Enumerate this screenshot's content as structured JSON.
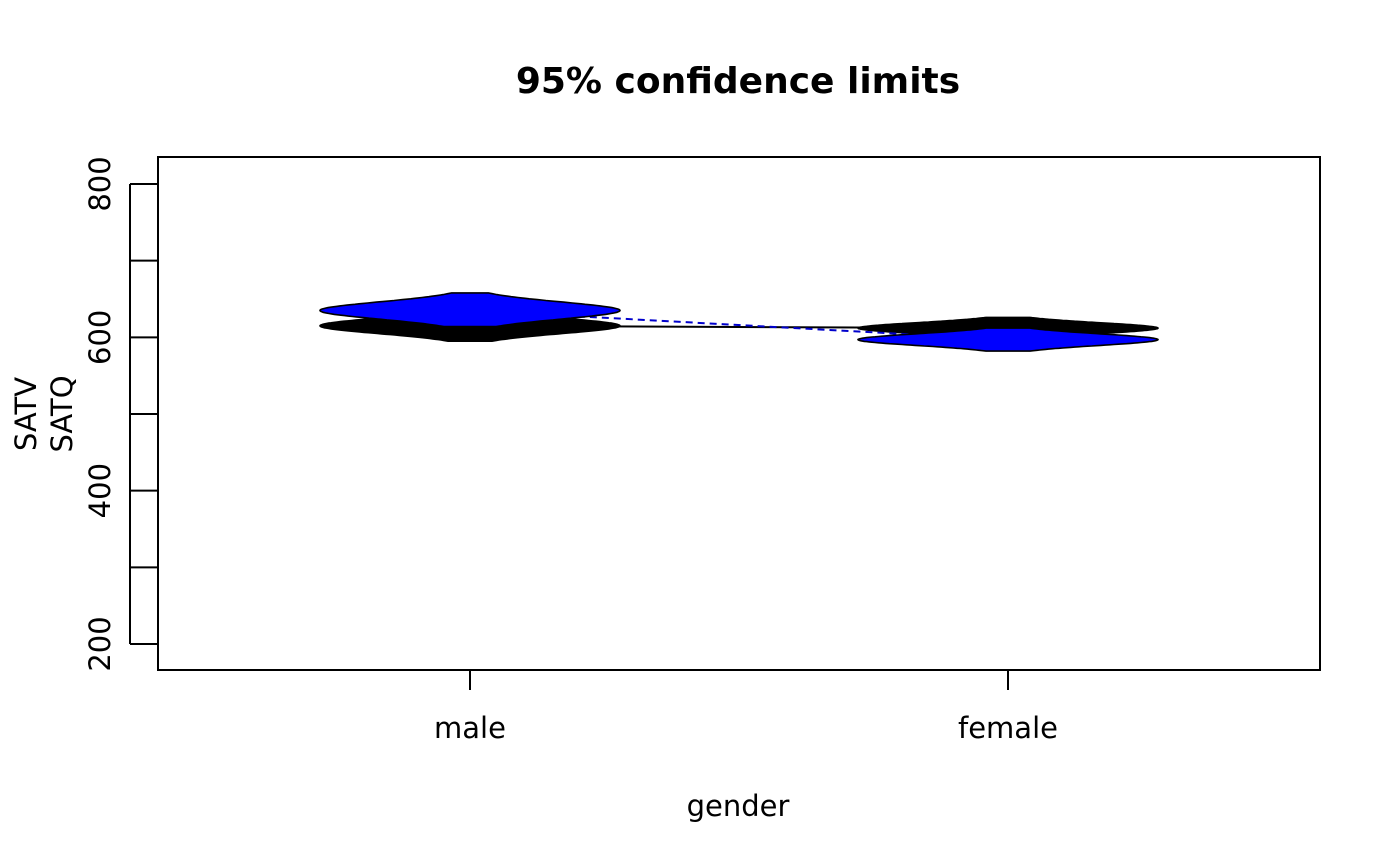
{
  "chart_data": {
    "type": "violin",
    "title": "95% confidence limits",
    "xlabel": "gender",
    "ylabel": [
      "SATV",
      "SATQ"
    ],
    "categories": [
      "male",
      "female"
    ],
    "ylim": [
      165,
      835
    ],
    "yticks": [
      200,
      300,
      400,
      500,
      600,
      700,
      800
    ],
    "ytick_labels": [
      "200",
      "",
      "400",
      "",
      "600",
      "",
      "800"
    ],
    "grid": false,
    "legend": "none",
    "series": [
      {
        "name": "SATV",
        "color": "#000000",
        "line_color": "#000000",
        "line_style": "solid",
        "means": [
          615,
          612
        ],
        "lower": [
          595,
          598
        ],
        "upper": [
          635,
          626
        ]
      },
      {
        "name": "SATQ",
        "color": "#0000ff",
        "line_color": "#0000cc",
        "line_style": "dashed",
        "means": [
          635,
          597
        ],
        "lower": [
          614,
          582
        ],
        "upper": [
          658,
          612
        ]
      }
    ]
  }
}
